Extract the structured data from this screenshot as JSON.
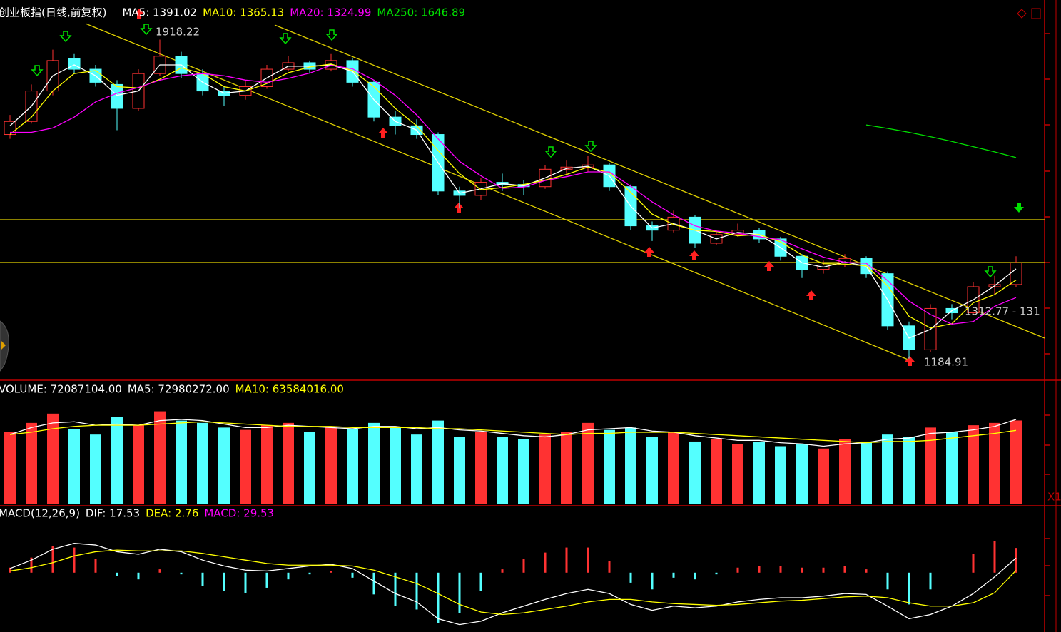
{
  "chart_data": [
    {
      "type": "candlestick",
      "title": "创业板指(日线,前复权)",
      "up_color": "#ff3232",
      "down_color": "#54ffff",
      "ylim": [
        1140,
        1960
      ],
      "candles": [
        [
          1700,
          1745,
          1690,
          1730
        ],
        [
          1730,
          1815,
          1725,
          1800
        ],
        [
          1800,
          1895,
          1790,
          1870
        ],
        [
          1875,
          1885,
          1840,
          1850
        ],
        [
          1850,
          1860,
          1810,
          1820
        ],
        [
          1815,
          1825,
          1710,
          1760
        ],
        [
          1760,
          1850,
          1755,
          1840
        ],
        [
          1840,
          1918.22,
          1835,
          1880
        ],
        [
          1880,
          1890,
          1830,
          1840
        ],
        [
          1840,
          1850,
          1790,
          1800
        ],
        [
          1800,
          1810,
          1765,
          1790
        ],
        [
          1790,
          1825,
          1780,
          1810
        ],
        [
          1810,
          1860,
          1805,
          1850
        ],
        [
          1850,
          1880,
          1845,
          1865
        ],
        [
          1865,
          1870,
          1840,
          1850
        ],
        [
          1850,
          1885,
          1845,
          1870
        ],
        [
          1870,
          1875,
          1810,
          1820
        ],
        [
          1820,
          1825,
          1730,
          1740
        ],
        [
          1740,
          1755,
          1700,
          1720
        ],
        [
          1720,
          1735,
          1690,
          1700
        ],
        [
          1700,
          1705,
          1560,
          1570
        ],
        [
          1570,
          1580,
          1530,
          1560
        ],
        [
          1560,
          1600,
          1550,
          1590
        ],
        [
          1590,
          1610,
          1570,
          1585
        ],
        [
          1585,
          1595,
          1560,
          1580
        ],
        [
          1580,
          1630,
          1575,
          1620
        ],
        [
          1620,
          1640,
          1605,
          1625
        ],
        [
          1625,
          1650,
          1615,
          1630
        ],
        [
          1630,
          1635,
          1570,
          1580
        ],
        [
          1580,
          1585,
          1480,
          1490
        ],
        [
          1490,
          1500,
          1455,
          1480
        ],
        [
          1480,
          1525,
          1475,
          1510
        ],
        [
          1510,
          1515,
          1440,
          1450
        ],
        [
          1450,
          1480,
          1445,
          1470
        ],
        [
          1470,
          1495,
          1465,
          1480
        ],
        [
          1480,
          1485,
          1450,
          1460
        ],
        [
          1460,
          1465,
          1410,
          1420
        ],
        [
          1420,
          1425,
          1370,
          1390
        ],
        [
          1390,
          1410,
          1380,
          1400
        ],
        [
          1400,
          1425,
          1395,
          1415
        ],
        [
          1415,
          1420,
          1370,
          1380
        ],
        [
          1380,
          1385,
          1250,
          1260
        ],
        [
          1260,
          1270,
          1184.91,
          1205
        ],
        [
          1205,
          1310,
          1200,
          1300
        ],
        [
          1300,
          1310,
          1275,
          1290
        ],
        [
          1290,
          1360,
          1285,
          1350
        ],
        [
          1350,
          1375,
          1330,
          1355
        ],
        [
          1355,
          1420,
          1350,
          1405
        ]
      ],
      "series": [
        {
          "name": "MA5: 1391.02",
          "color": "#ffffff",
          "values": [
            1720,
            1765,
            1835,
            1860,
            1835,
            1790,
            1800,
            1860,
            1860,
            1820,
            1795,
            1800,
            1830,
            1857,
            1857,
            1860,
            1845,
            1780,
            1730,
            1710,
            1635,
            1565,
            1575,
            1587,
            1582,
            1600,
            1622,
            1627,
            1605,
            1535,
            1485,
            1495,
            1480,
            1460,
            1475,
            1470,
            1440,
            1405,
            1395,
            1407,
            1397,
            1320,
            1232,
            1252,
            1295,
            1320,
            1352,
            1391.02
          ]
        },
        {
          "name": "MA10: 1365.13",
          "color": "#ffff00",
          "values": [
            1700,
            1740,
            1800,
            1840,
            1847,
            1810,
            1807,
            1827,
            1853,
            1840,
            1810,
            1800,
            1817,
            1842,
            1855,
            1862,
            1847,
            1810,
            1760,
            1720,
            1663,
            1610,
            1573,
            1578,
            1585,
            1595,
            1608,
            1625,
            1612,
            1567,
            1517,
            1493,
            1480,
            1477,
            1467,
            1470,
            1453,
            1423,
            1403,
            1402,
            1398,
            1352,
            1282,
            1255,
            1265,
            1313,
            1332,
            1365.13
          ]
        },
        {
          "name": "MA20: 1324.99",
          "color": "#ff00ff",
          "values": [
            1705,
            1705,
            1715,
            1740,
            1775,
            1795,
            1808,
            1825,
            1835,
            1840,
            1835,
            1825,
            1820,
            1829,
            1841,
            1859,
            1851,
            1825,
            1790,
            1745,
            1690,
            1638,
            1605,
            1576,
            1579,
            1594,
            1603,
            1614,
            1614,
            1581,
            1545,
            1515,
            1490,
            1478,
            1473,
            1465,
            1458,
            1437,
            1418,
            1406,
            1404,
            1364,
            1317,
            1286,
            1264,
            1270,
            1305,
            1324.99
          ]
        },
        {
          "name": "MA250: 1646.89",
          "color": "#00e000",
          "values": [
            null,
            null,
            null,
            null,
            null,
            null,
            null,
            null,
            null,
            null,
            null,
            null,
            null,
            null,
            null,
            null,
            null,
            null,
            null,
            null,
            null,
            null,
            null,
            null,
            null,
            null,
            null,
            null,
            null,
            null,
            null,
            null,
            null,
            null,
            null,
            null,
            null,
            null,
            null,
            null,
            1722,
            1714,
            1705,
            1695,
            1684,
            1672,
            1660,
            1646.89
          ]
        }
      ],
      "annotations": [
        {
          "text": "1918.22"
        },
        {
          "text": "1184.91"
        },
        {
          "text": "1312.77 - 131"
        }
      ]
    },
    {
      "type": "bar",
      "title": "VOLUME: 72087104.00",
      "ylim": [
        0,
        92000000
      ],
      "values": [
        62000000,
        70000000,
        78000000,
        65000000,
        60000000,
        75000000,
        68000000,
        80000000,
        72000000,
        70000000,
        66000000,
        64000000,
        68000000,
        70000000,
        62000000,
        66000000,
        65000000,
        70000000,
        66000000,
        60000000,
        72000000,
        58000000,
        62000000,
        58000000,
        56000000,
        60000000,
        62000000,
        70000000,
        64000000,
        66000000,
        58000000,
        62000000,
        54000000,
        56000000,
        52000000,
        54000000,
        50000000,
        52000000,
        48000000,
        56000000,
        54000000,
        60000000,
        58000000,
        66000000,
        62000000,
        68000000,
        70000000,
        72087104
      ],
      "series": [
        {
          "name": "MA5: 72980272.00",
          "color": "#ffffff",
          "values": [
            60000000,
            66000000,
            70000000,
            71000000,
            68000000,
            69000000,
            68000000,
            72000000,
            73000000,
            72000000,
            69000000,
            66000000,
            66000000,
            68000000,
            67000000,
            66000000,
            65000000,
            67000000,
            67000000,
            65000000,
            66000000,
            64000000,
            63000000,
            61000000,
            59000000,
            58000000,
            60000000,
            64000000,
            65000000,
            66000000,
            63000000,
            62000000,
            59000000,
            57000000,
            55000000,
            55000000,
            53000000,
            52000000,
            50000000,
            52000000,
            53000000,
            56000000,
            57000000,
            61000000,
            62000000,
            64000000,
            67000000,
            72980272
          ]
        },
        {
          "name": "MA10: 63584016.00",
          "color": "#ffff00",
          "values": [
            60000000,
            62000000,
            65000000,
            67000000,
            68000000,
            68000000,
            68000000,
            69000000,
            70000000,
            71000000,
            70000000,
            69000000,
            68000000,
            67000000,
            67000000,
            67000000,
            66000000,
            66000000,
            66000000,
            66000000,
            65000000,
            65000000,
            64000000,
            63000000,
            62000000,
            61000000,
            60000000,
            61000000,
            61000000,
            62000000,
            62000000,
            62000000,
            61000000,
            60000000,
            59000000,
            58000000,
            57000000,
            56000000,
            55000000,
            54000000,
            53000000,
            54000000,
            54000000,
            55000000,
            57000000,
            59000000,
            61000000,
            63584016
          ]
        }
      ],
      "corner_label": "X1"
    },
    {
      "type": "macd",
      "title": "MACD(12,26,9)",
      "ylim": [
        -70,
        62
      ],
      "pos_color": "#ff3232",
      "neg_color": "#54ffff",
      "series": [
        {
          "name": "DIF: 17.53",
          "color": "#ffffff",
          "values": [
            5,
            15,
            28,
            35,
            33,
            25,
            22,
            28,
            25,
            15,
            8,
            3,
            2,
            5,
            8,
            10,
            5,
            -10,
            -25,
            -35,
            -55,
            -62,
            -58,
            -48,
            -40,
            -32,
            -25,
            -20,
            -25,
            -38,
            -45,
            -40,
            -42,
            -40,
            -35,
            -32,
            -30,
            -30,
            -28,
            -25,
            -26,
            -40,
            -55,
            -50,
            -40,
            -25,
            -5,
            17.53
          ]
        },
        {
          "name": "DEA: 2.76",
          "color": "#ffff00",
          "values": [
            2,
            6,
            12,
            20,
            25,
            27,
            26,
            26,
            26,
            23,
            19,
            15,
            11,
            9,
            9,
            9,
            8,
            3,
            -5,
            -13,
            -25,
            -38,
            -47,
            -50,
            -48,
            -44,
            -40,
            -35,
            -32,
            -32,
            -35,
            -37,
            -38,
            -39,
            -38,
            -36,
            -34,
            -33,
            -31,
            -29,
            -28,
            -30,
            -36,
            -40,
            -40,
            -36,
            -24,
            2.76
          ]
        }
      ],
      "histogram": {
        "name": "MACD: 29.53",
        "color": "#ff00ff",
        "values": [
          6,
          18,
          32,
          30,
          16,
          -4,
          -8,
          4,
          -2,
          -16,
          -22,
          -24,
          -18,
          -8,
          -2,
          2,
          -6,
          -26,
          -40,
          -44,
          -60,
          -48,
          -22,
          4,
          16,
          24,
          30,
          30,
          14,
          -12,
          -20,
          -6,
          -8,
          -2,
          6,
          8,
          8,
          6,
          6,
          8,
          4,
          -20,
          -38,
          -20,
          0,
          22,
          38,
          29.53
        ]
      }
    }
  ]
}
